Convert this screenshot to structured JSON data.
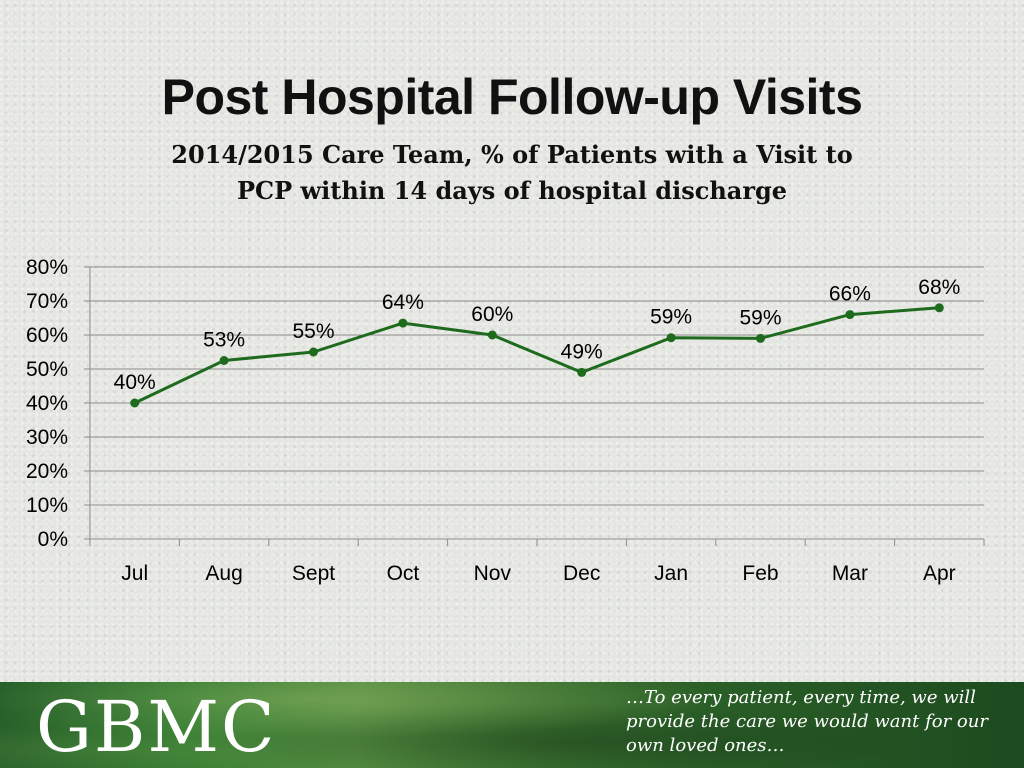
{
  "header": {
    "title": "Post Hospital Follow-up Visits",
    "subtitle_line1": "2014/2015 Care Team, % of Patients with a Visit to",
    "subtitle_line2": "PCP within 14 days of hospital discharge"
  },
  "chart_data": {
    "type": "line",
    "categories": [
      "Jul",
      "Aug",
      "Sept",
      "Oct",
      "Nov",
      "Dec",
      "Jan",
      "Feb",
      "Mar",
      "Apr"
    ],
    "values": [
      40,
      52.5,
      55,
      63.5,
      60,
      49,
      59.2,
      59,
      66,
      68
    ],
    "data_labels": [
      "40%",
      "53%",
      "55%",
      "64%",
      "60%",
      "49%",
      "59%",
      "59%",
      "66%",
      "68%"
    ],
    "y_ticks": [
      "0%",
      "10%",
      "20%",
      "30%",
      "40%",
      "50%",
      "60%",
      "70%",
      "80%"
    ],
    "ylim": [
      0,
      80
    ],
    "grid": true,
    "legend": "none",
    "line_color": "#1e6b1e",
    "title": "",
    "xlabel": "",
    "ylabel": ""
  },
  "footer": {
    "logo_text": "GBMC",
    "tagline_line1": "…To every patient, every time, we will",
    "tagline_line2": "provide the care we would want for our",
    "tagline_line3": "own loved ones…"
  }
}
